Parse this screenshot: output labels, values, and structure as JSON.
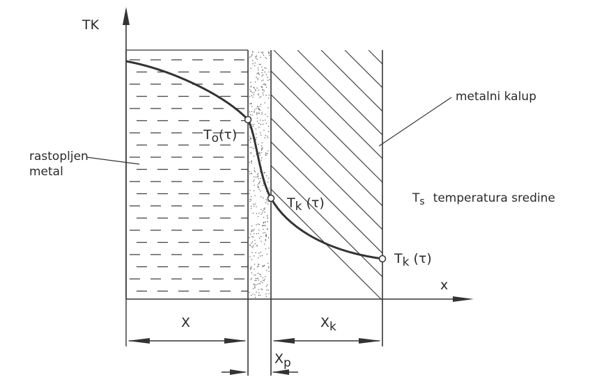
{
  "axes": {
    "y_label": "TK",
    "x_label": "x"
  },
  "regions": {
    "molten_metal": "rastopljen\nmetal",
    "mold": "metalni kalup",
    "environment": "T",
    "environment_sub": "s",
    "environment_text": "temperatura sredine"
  },
  "points": {
    "t0": "T",
    "t0_sub": "o",
    "t0_arg": "(τ)",
    "tk1": "T",
    "tk1_sub": "k",
    "tk1_arg": "(τ)",
    "tk2": "T",
    "tk2_sub": "k",
    "tk2_arg": "(τ)"
  },
  "dimensions": {
    "x": "X",
    "xk": "X",
    "xk_sub": "k",
    "xp": "X",
    "xp_sub": "p"
  },
  "colors": {
    "ink": "#333333",
    "paper": "#ffffff"
  }
}
